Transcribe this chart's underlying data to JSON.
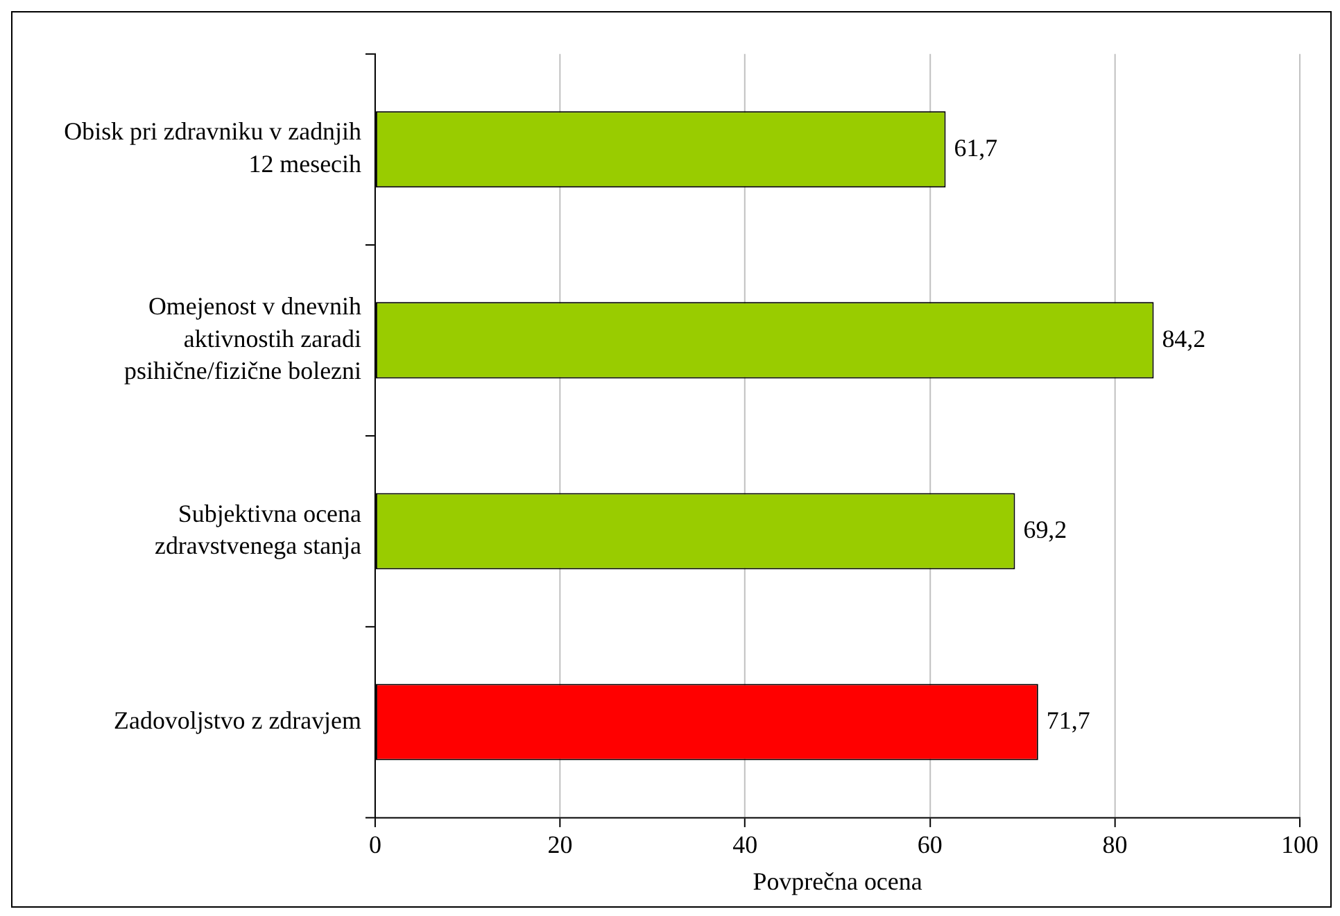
{
  "chart_data": {
    "type": "bar",
    "orientation": "horizontal",
    "xlabel": "Povprečna ocena",
    "categories": [
      "Obisk pri zdravniku v zadnjih 12 mesecih",
      "Omejenost v dnevnih aktivnostih zaradi psihične/fizične bolezni",
      "Subjektivna ocena zdravstvenega stanja",
      "Zadovoljstvo z zdravjem"
    ],
    "values": [
      61.7,
      84.2,
      69.2,
      71.7
    ],
    "colors": [
      "#99cc00",
      "#99cc00",
      "#99cc00",
      "#ff0000"
    ],
    "value_labels": [
      "61,7",
      "84,2",
      "69,2",
      "71,7"
    ],
    "xlim": [
      0,
      100
    ],
    "xticks": [
      0,
      20,
      40,
      60,
      80,
      100
    ],
    "grid": "x",
    "legend": false
  }
}
